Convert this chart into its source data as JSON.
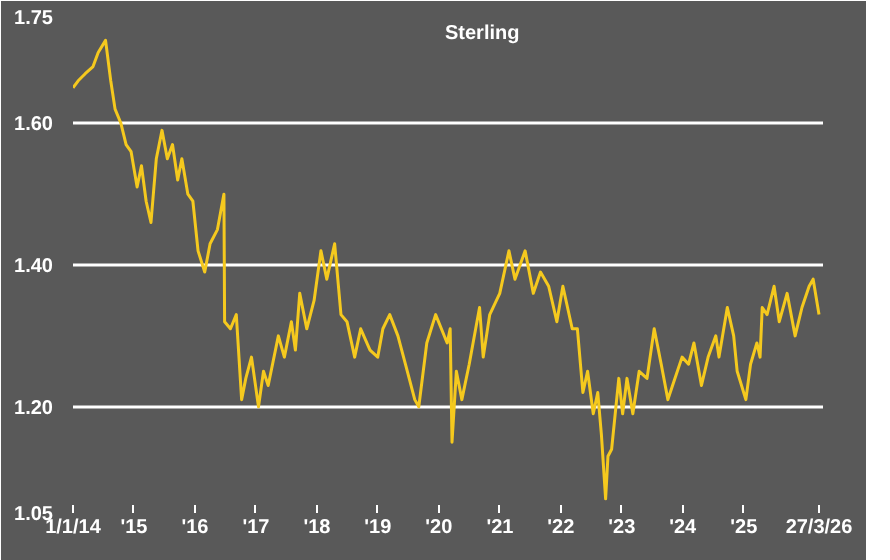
{
  "chart_data": {
    "type": "line",
    "title": "Sterling",
    "x": [
      "2014-01-01",
      "2014-02-01",
      "2014-03-15",
      "2014-05-01",
      "2014-06-01",
      "2014-07-15",
      "2014-08-15",
      "2014-09-10",
      "2014-10-15",
      "2014-11-15",
      "2014-12-15",
      "2015-01-20",
      "2015-02-15",
      "2015-03-15",
      "2015-04-13",
      "2015-05-15",
      "2015-06-18",
      "2015-07-20",
      "2015-08-20",
      "2015-09-20",
      "2015-10-15",
      "2015-11-20",
      "2015-12-20",
      "2016-01-20",
      "2016-02-29",
      "2016-04-01",
      "2016-05-15",
      "2016-06-23",
      "2016-06-27",
      "2016-08-01",
      "2016-09-05",
      "2016-10-07",
      "2016-11-01",
      "2016-12-05",
      "2017-01-16",
      "2017-02-15",
      "2017-03-15",
      "2017-05-15",
      "2017-06-20",
      "2017-08-01",
      "2017-08-25",
      "2017-09-20",
      "2017-11-01",
      "2017-12-15",
      "2018-01-25",
      "2018-03-01",
      "2018-04-17",
      "2018-05-25",
      "2018-06-30",
      "2018-08-15",
      "2018-09-20",
      "2018-11-15",
      "2018-12-31",
      "2019-01-31",
      "2019-03-13",
      "2019-05-01",
      "2019-06-15",
      "2019-08-10",
      "2019-09-03",
      "2019-10-21",
      "2019-12-13",
      "2020-02-20",
      "2020-03-09",
      "2020-03-20",
      "2020-04-15",
      "2020-05-18",
      "2020-07-01",
      "2020-09-01",
      "2020-09-23",
      "2020-11-01",
      "2020-12-31",
      "2021-02-24",
      "2021-04-01",
      "2021-06-01",
      "2021-07-20",
      "2021-09-01",
      "2021-10-20",
      "2021-12-08",
      "2022-01-13",
      "2022-03-10",
      "2022-04-10",
      "2022-05-13",
      "2022-06-10",
      "2022-07-14",
      "2022-08-10",
      "2022-09-01",
      "2022-09-26",
      "2022-10-10",
      "2022-11-01",
      "2022-12-14",
      "2023-01-06",
      "2023-02-01",
      "2023-03-08",
      "2023-04-15",
      "2023-06-01",
      "2023-07-14",
      "2023-08-25",
      "2023-10-04",
      "2023-11-01",
      "2023-12-28",
      "2024-02-05",
      "2024-03-08",
      "2024-04-22",
      "2024-06-01",
      "2024-07-17",
      "2024-08-05",
      "2024-09-24",
      "2024-11-01",
      "2024-11-22",
      "2025-01-13",
      "2025-02-10",
      "2025-03-20",
      "2025-04-08",
      "2025-04-21",
      "2025-05-20",
      "2025-07-01",
      "2025-08-01",
      "2025-09-17",
      "2025-11-04",
      "2025-12-15",
      "2026-01-27",
      "2026-02-20",
      "2026-03-27"
    ],
    "series": [
      {
        "color": "#f5c91e",
        "values": [
          1.65,
          1.66,
          1.67,
          1.68,
          1.7,
          1.717,
          1.66,
          1.62,
          1.6,
          1.57,
          1.56,
          1.51,
          1.54,
          1.49,
          1.46,
          1.55,
          1.59,
          1.55,
          1.57,
          1.52,
          1.55,
          1.5,
          1.49,
          1.42,
          1.39,
          1.43,
          1.45,
          1.5,
          1.32,
          1.31,
          1.33,
          1.21,
          1.24,
          1.27,
          1.2,
          1.25,
          1.23,
          1.3,
          1.27,
          1.32,
          1.28,
          1.36,
          1.31,
          1.35,
          1.42,
          1.38,
          1.43,
          1.33,
          1.32,
          1.27,
          1.31,
          1.28,
          1.27,
          1.31,
          1.33,
          1.3,
          1.26,
          1.21,
          1.2,
          1.29,
          1.33,
          1.29,
          1.31,
          1.15,
          1.25,
          1.21,
          1.26,
          1.34,
          1.27,
          1.33,
          1.36,
          1.42,
          1.38,
          1.42,
          1.36,
          1.39,
          1.37,
          1.32,
          1.37,
          1.31,
          1.31,
          1.22,
          1.25,
          1.19,
          1.22,
          1.16,
          1.07,
          1.13,
          1.14,
          1.24,
          1.19,
          1.24,
          1.19,
          1.25,
          1.24,
          1.31,
          1.26,
          1.21,
          1.23,
          1.27,
          1.26,
          1.29,
          1.23,
          1.27,
          1.3,
          1.27,
          1.34,
          1.3,
          1.25,
          1.21,
          1.26,
          1.29,
          1.27,
          1.34,
          1.33,
          1.37,
          1.32,
          1.36,
          1.3,
          1.34,
          1.37,
          1.38,
          1.33
        ]
      }
    ],
    "xlim": [
      "2014-01-01",
      "2026-04-20"
    ],
    "ylim": [
      1.05,
      1.75
    ],
    "xticks": [
      {
        "value": "2014-01-01",
        "label": "1/1/14"
      },
      {
        "value": "2015-01-01",
        "label": "'15"
      },
      {
        "value": "2016-01-01",
        "label": "'16"
      },
      {
        "value": "2017-01-01",
        "label": "'17"
      },
      {
        "value": "2018-01-01",
        "label": "'18"
      },
      {
        "value": "2019-01-01",
        "label": "'19"
      },
      {
        "value": "2020-01-01",
        "label": "'20"
      },
      {
        "value": "2021-01-01",
        "label": "'21"
      },
      {
        "value": "2022-01-01",
        "label": "'22"
      },
      {
        "value": "2023-01-01",
        "label": "'23"
      },
      {
        "value": "2024-01-01",
        "label": "'24"
      },
      {
        "value": "2025-01-01",
        "label": "'25"
      },
      {
        "value": "2026-03-27",
        "label": "27/3/26"
      }
    ],
    "yticks": [
      {
        "value": 1.05,
        "label": "1.05"
      },
      {
        "value": 1.2,
        "label": "1.20"
      },
      {
        "value": 1.4,
        "label": "1.40"
      },
      {
        "value": 1.6,
        "label": "1.60"
      },
      {
        "value": 1.75,
        "label": "1.75"
      }
    ],
    "grid": "y",
    "line_style": "solid"
  }
}
